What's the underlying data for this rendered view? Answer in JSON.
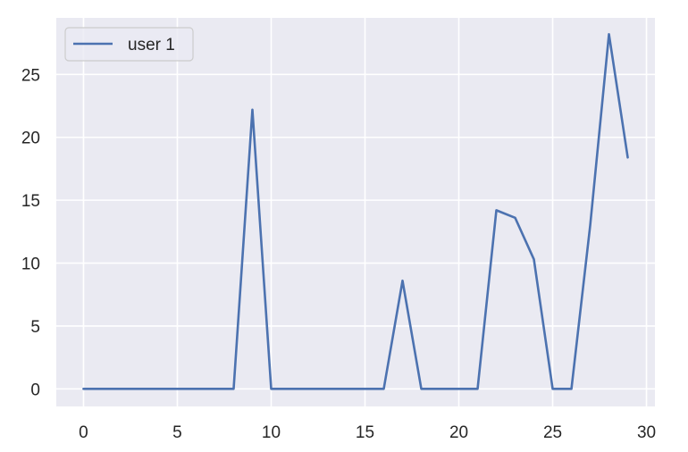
{
  "chart_data": {
    "type": "line",
    "title": "",
    "xlabel": "",
    "ylabel": "",
    "xlim": [
      -1.45,
      30.45
    ],
    "ylim": [
      -1.4,
      29.5
    ],
    "xticks": [
      0,
      5,
      10,
      15,
      20,
      25,
      30
    ],
    "yticks": [
      0,
      5,
      10,
      15,
      20,
      25
    ],
    "grid": true,
    "legend_position": "top-left",
    "series": [
      {
        "name": "user 1",
        "color": "#4c72b0",
        "x": [
          0,
          1,
          2,
          3,
          4,
          5,
          6,
          7,
          8,
          9,
          10,
          11,
          12,
          13,
          14,
          15,
          16,
          17,
          18,
          19,
          20,
          21,
          22,
          23,
          24,
          25,
          26,
          27,
          28,
          29
        ],
        "y": [
          0,
          0,
          0,
          0,
          0,
          0,
          0,
          0,
          0,
          22.2,
          0,
          0,
          0,
          0,
          0,
          0,
          0,
          8.6,
          0,
          0,
          0,
          0,
          14.2,
          13.6,
          10.3,
          0,
          0,
          13.0,
          28.2,
          18.4
        ]
      }
    ]
  },
  "style": {
    "plot_background": "#eaeaf2",
    "grid_color": "#ffffff",
    "text_color": "#262626",
    "legend_background": "#eaeaf2",
    "legend_border": "#cccccc"
  }
}
